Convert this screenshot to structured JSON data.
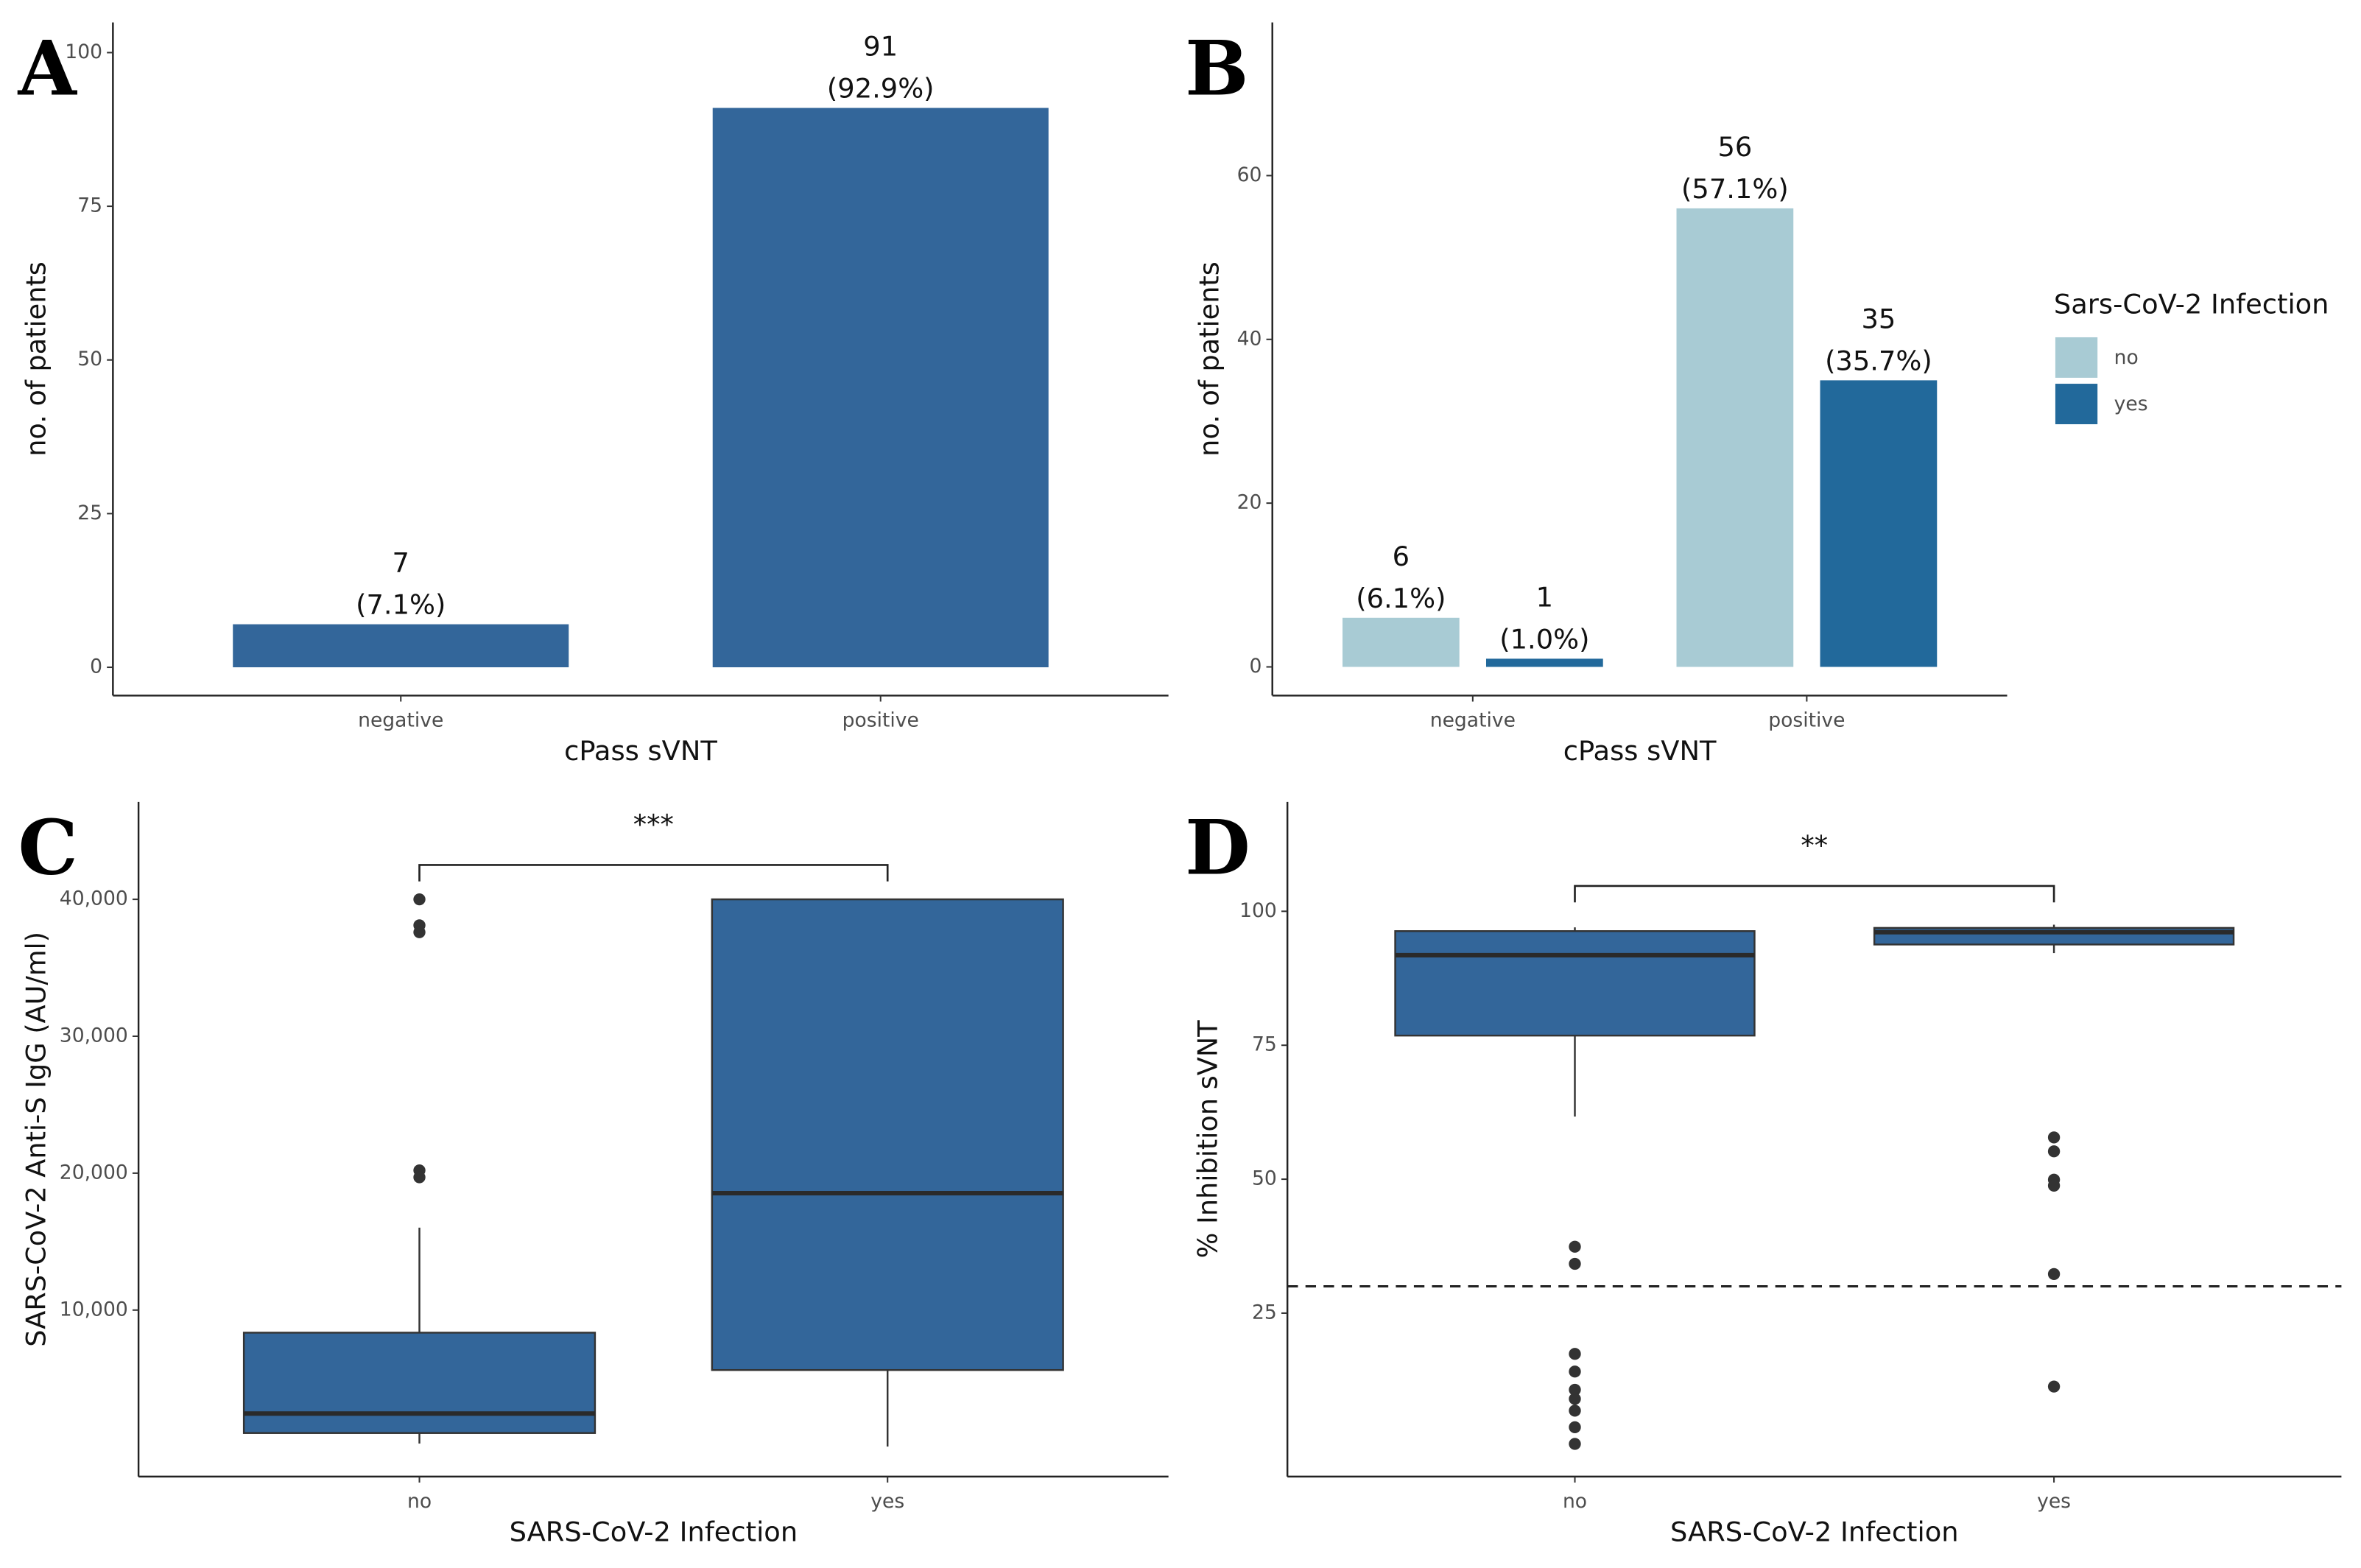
{
  "chart_data": [
    {
      "type": "bar",
      "panel": "A",
      "xlabel": "cPass sVNT",
      "ylabel": "no. of patients",
      "categories": [
        "negative",
        "positive"
      ],
      "values": [
        7,
        91
      ],
      "percent_labels": [
        "(7.1%)",
        "(92.9%)"
      ],
      "color": "#33669a",
      "ylim": [
        -4.6,
        104.9
      ],
      "yticks": [
        0,
        25,
        50,
        75,
        100
      ]
    },
    {
      "type": "grouped-bar",
      "panel": "B",
      "xlabel": "cPass sVNT",
      "ylabel": "no. of patients",
      "legend_title": "Sars-CoV-2 Infection",
      "categories": [
        "negative",
        "positive"
      ],
      "series": [
        {
          "name": "no",
          "color": "#a8cbd4",
          "values": [
            6,
            56
          ],
          "percent_labels": [
            "(6.1%)",
            "(57.1%)"
          ]
        },
        {
          "name": "yes",
          "color": "#22699b",
          "values": [
            1,
            35
          ],
          "percent_labels": [
            "(1.0%)",
            "(35.7%)"
          ]
        }
      ],
      "ylim": [
        -3.5,
        78.7
      ],
      "yticks": [
        0,
        20,
        40,
        60
      ]
    },
    {
      "type": "box",
      "panel": "C",
      "xlabel": "SARS-CoV-2 Infection",
      "ylabel": "SARS-CoV-2 Anti-S IgG (AU/ml)",
      "significance": "***",
      "categories": [
        "no",
        "yes"
      ],
      "color": "#33669a",
      "boxes": [
        {
          "min": 250,
          "q1": 1020,
          "median": 2440,
          "q3": 8350,
          "max": 16020,
          "outliers": [
            40000,
            38100,
            37600,
            20200,
            19700
          ]
        },
        {
          "min": 30,
          "q1": 5620,
          "median": 18540,
          "q3": 40000,
          "max": 40000,
          "outliers": []
        }
      ],
      "ylim": [
        -2160,
        47110
      ],
      "yticks": [
        {
          "value": 10000,
          "label": "10,000"
        },
        {
          "value": 20000,
          "label": "20,000"
        },
        {
          "value": 30000,
          "label": "30,000"
        },
        {
          "value": 40000,
          "label": "40,000"
        }
      ]
    },
    {
      "type": "box",
      "panel": "D",
      "xlabel": "SARS-CoV-2 Infection",
      "ylabel": "% Inhibition sVNT",
      "significance": "**",
      "categories": [
        "no",
        "yes"
      ],
      "color": "#33669a",
      "hline": 30,
      "boxes": [
        {
          "min": 61.7,
          "q1": 76.8,
          "median": 91.8,
          "q3": 96.3,
          "max": 97,
          "outliers": [
            37.4,
            34.2,
            17.4,
            14.1,
            10.7,
            9.0,
            6.8,
            3.7,
            0.6
          ]
        },
        {
          "min": 92.2,
          "q1": 93.8,
          "median": 96.1,
          "q3": 96.9,
          "max": 97.5,
          "outliers": [
            57.8,
            55.2,
            49.9,
            48.8,
            32.3,
            11.3
          ]
        }
      ],
      "ylim": [
        -5.5,
        120.4
      ],
      "yticks": [
        25,
        50,
        75,
        100
      ]
    }
  ]
}
